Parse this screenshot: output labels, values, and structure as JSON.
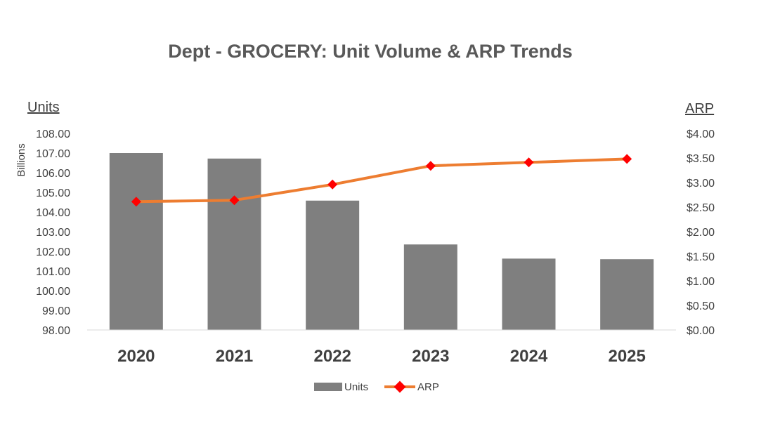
{
  "chart_data": {
    "type": "bar",
    "title": "Dept - GROCERY:  Unit Volume & ARP Trends",
    "categories": [
      "2020",
      "2021",
      "2022",
      "2023",
      "2024",
      "2025"
    ],
    "series": [
      {
        "name": "Units",
        "type": "bar",
        "axis": "left",
        "color": "#7f7f7f",
        "values": [
          107.0,
          106.72,
          104.58,
          102.35,
          101.63,
          101.6
        ]
      },
      {
        "name": "ARP",
        "type": "line",
        "axis": "right",
        "color": "#ed7d31",
        "marker_color": "#ff0000",
        "values": [
          2.61,
          2.64,
          2.96,
          3.34,
          3.41,
          3.48
        ]
      }
    ],
    "left_axis": {
      "title": "Units",
      "unit_label": "Billions",
      "min": 98.0,
      "max": 108.0,
      "step": 1.0,
      "ticks": [
        "98.00",
        "99.00",
        "100.00",
        "101.00",
        "102.00",
        "103.00",
        "104.00",
        "105.00",
        "106.00",
        "107.00",
        "108.00"
      ]
    },
    "right_axis": {
      "title": "ARP",
      "min": 0.0,
      "max": 4.0,
      "step": 0.5,
      "ticks": [
        "$0.00",
        "$0.50",
        "$1.00",
        "$1.50",
        "$2.00",
        "$2.50",
        "$3.00",
        "$3.50",
        "$4.00"
      ]
    },
    "grid": false,
    "legend": {
      "position": "bottom",
      "entries": [
        "Units",
        "ARP"
      ]
    }
  }
}
